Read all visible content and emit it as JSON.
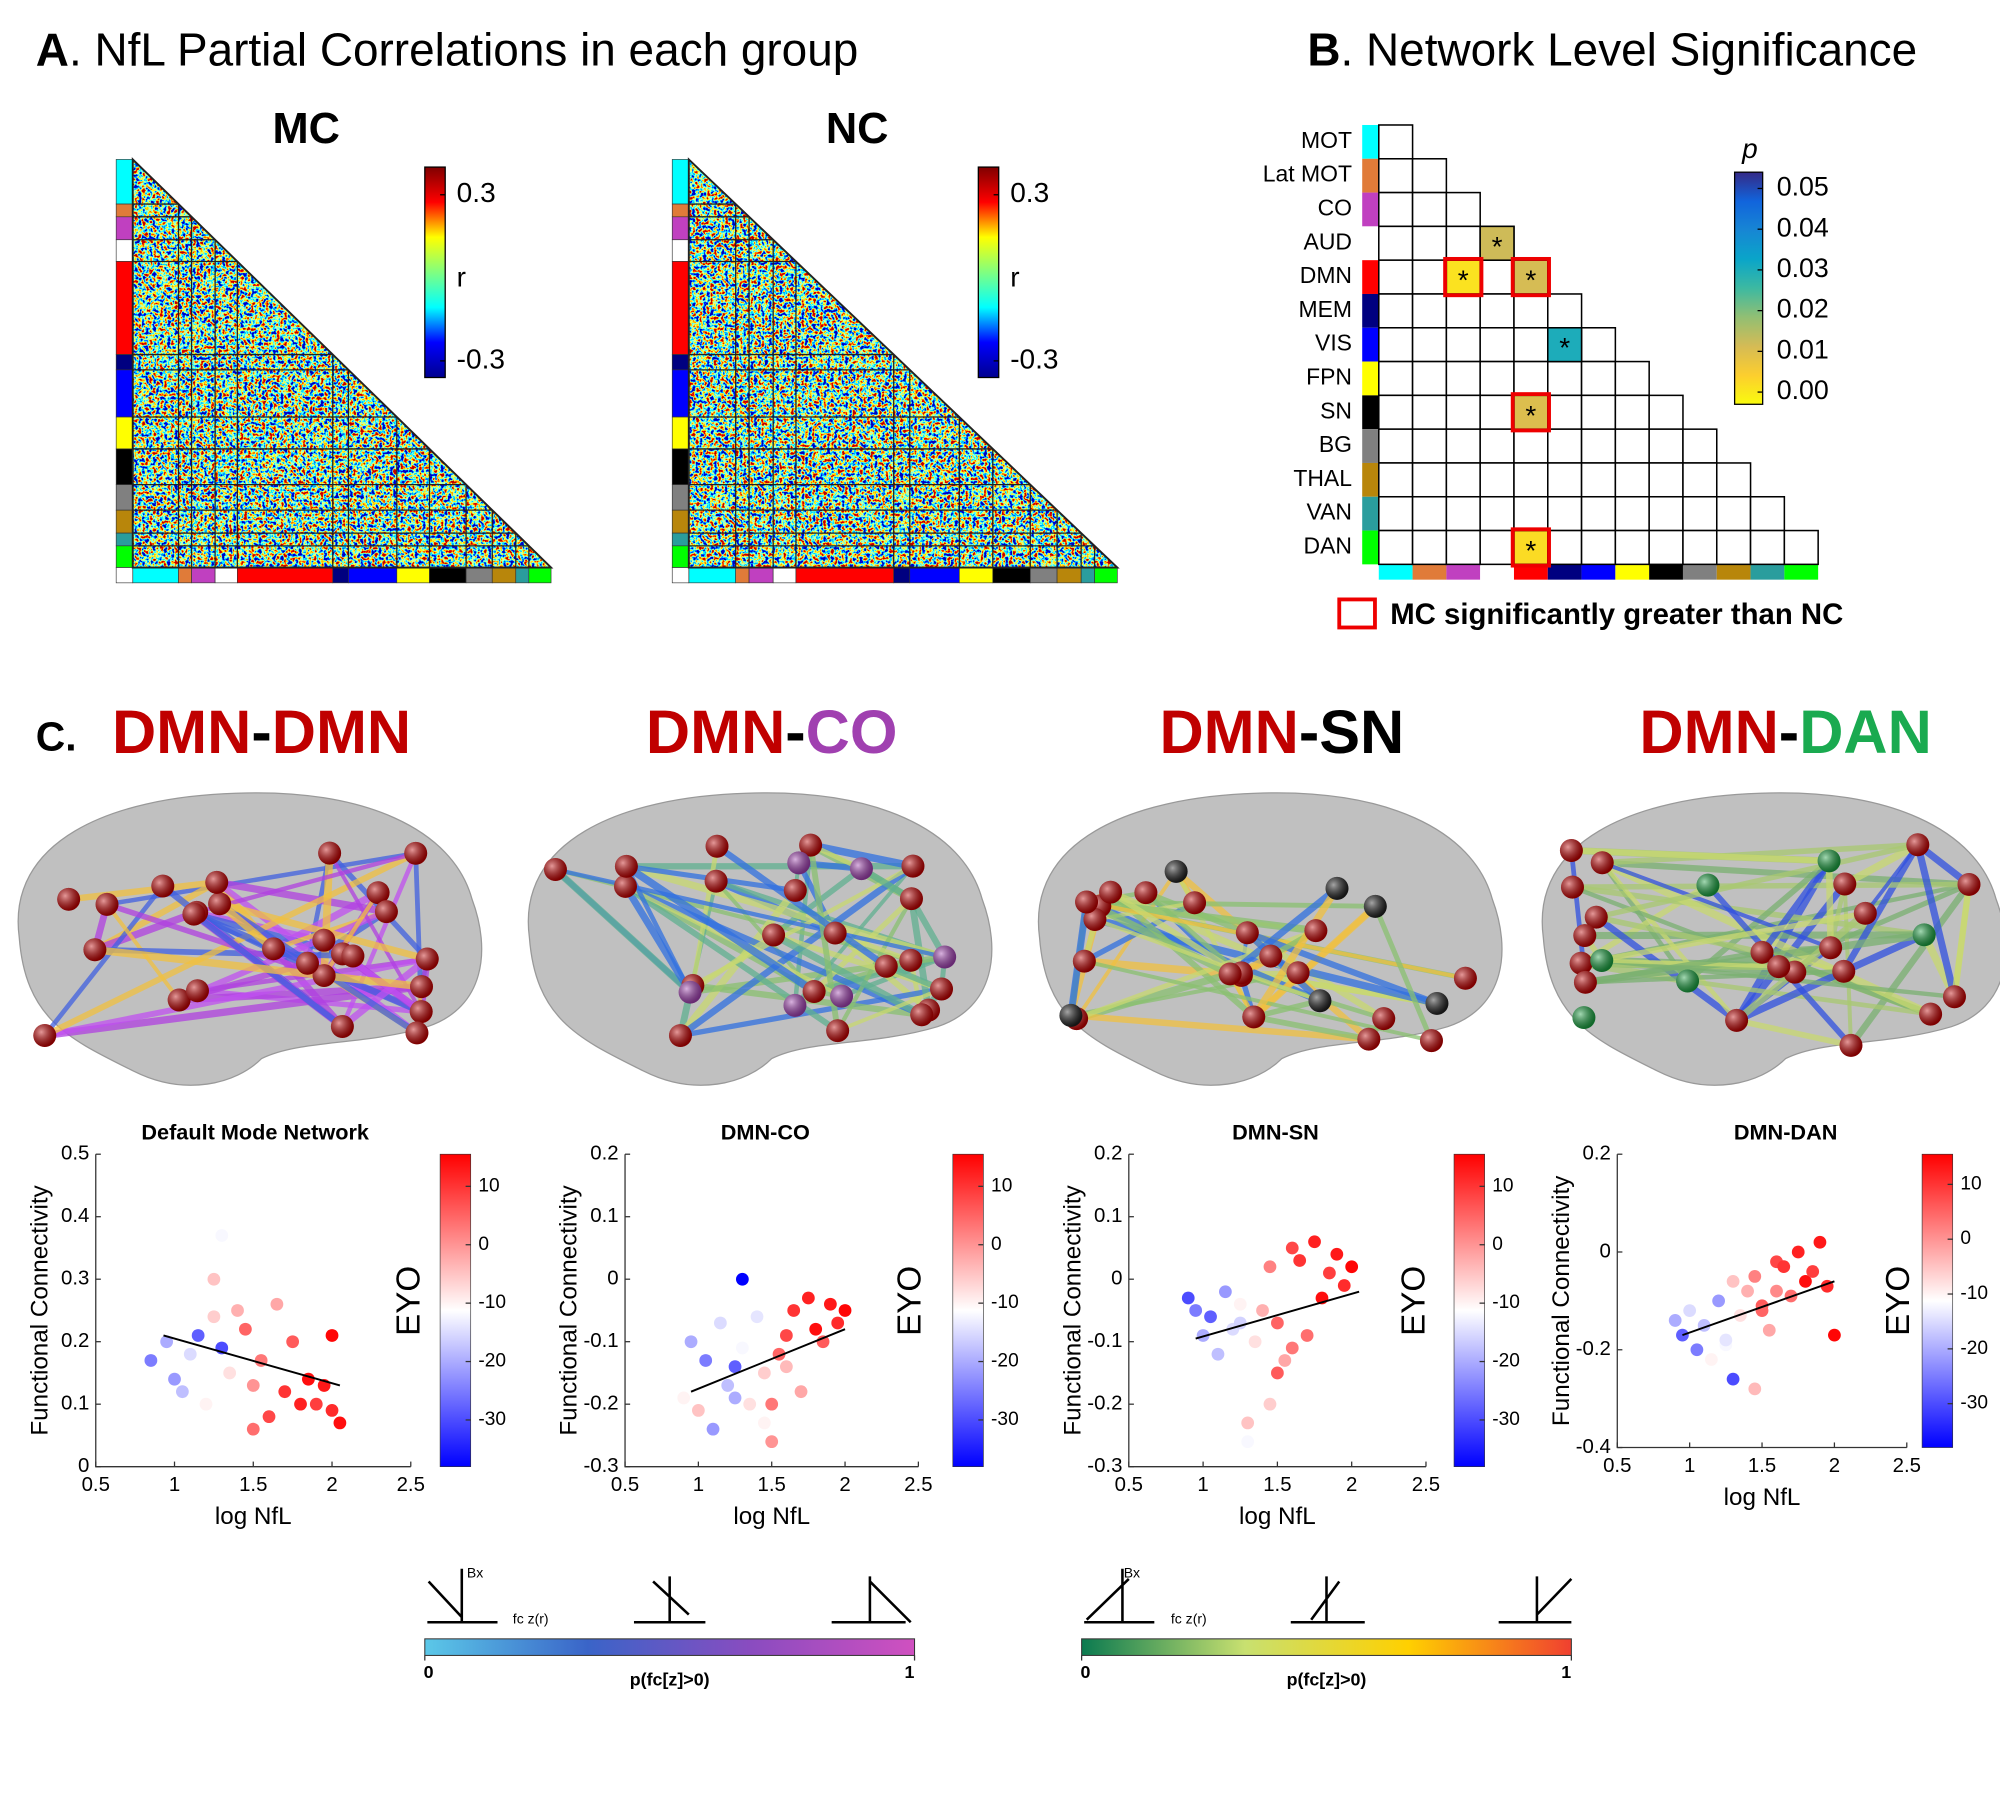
{
  "networks": [
    {
      "name": "MOT",
      "color": "#00ffff"
    },
    {
      "name": "Lat MOT",
      "color": "#e07b39"
    },
    {
      "name": "CO",
      "color": "#c040c0"
    },
    {
      "name": "AUD",
      "color": "#ffffff"
    },
    {
      "name": "DMN",
      "color": "#ff0000"
    },
    {
      "name": "MEM",
      "color": "#000080"
    },
    {
      "name": "VIS",
      "color": "#0000ff"
    },
    {
      "name": "FPN",
      "color": "#ffff00"
    },
    {
      "name": "SN",
      "color": "#000000"
    },
    {
      "name": "BG",
      "color": "#808080"
    },
    {
      "name": "THAL",
      "color": "#b8860b"
    },
    {
      "name": "VAN",
      "color": "#2a9d9d"
    },
    {
      "name": "DAN",
      "color": "#00ff00"
    }
  ],
  "panel_a": {
    "label": "A",
    "title": ". NfL Partial Correlations in each group",
    "matrices": [
      {
        "title": "MC"
      },
      {
        "title": "NC"
      }
    ],
    "colorbar": {
      "label": "r",
      "clim": [
        -0.36,
        0.4
      ],
      "ticks": [
        0.3,
        -0.3
      ],
      "colors": [
        "#00008f",
        "#0000ff",
        "#00ffff",
        "#80ff80",
        "#ffff00",
        "#ff0000",
        "#800000"
      ]
    }
  },
  "panel_b": {
    "label": "B",
    "title": ". Network Level Significance",
    "colorbar": {
      "label": "p",
      "clim": [
        -0.003,
        0.054
      ],
      "ticks": [
        {
          "value": 0.05,
          "label": "0.05"
        },
        {
          "value": 0.04,
          "label": "0.04"
        },
        {
          "value": 0.03,
          "label": "0.03"
        },
        {
          "value": 0.02,
          "label": "0.02"
        },
        {
          "value": 0.01,
          "label": "0.01"
        },
        {
          "value": 0,
          "label": "0.00"
        }
      ],
      "colors": [
        "#f9fb0e",
        "#fcce2e",
        "#d5bb55",
        "#92bf73",
        "#3db9a1",
        "#0aa5c9",
        "#1786d4",
        "#1164dc",
        "#352a87"
      ]
    },
    "cells": [
      {
        "row": "AUD",
        "col": "AUD",
        "p": 0.012,
        "mark": "*",
        "mc_greater": false
      },
      {
        "row": "DMN",
        "col": "CO",
        "p": 0.001,
        "mark": "*",
        "mc_greater": true
      },
      {
        "row": "DMN",
        "col": "DMN",
        "p": 0.011,
        "mark": "*",
        "mc_greater": true
      },
      {
        "row": "VIS",
        "col": "MEM",
        "p": 0.03,
        "mark": "*",
        "mc_greater": false
      },
      {
        "row": "SN",
        "col": "DMN",
        "p": 0.01,
        "mark": "*",
        "mc_greater": true
      },
      {
        "row": "DAN",
        "col": "DMN",
        "p": 0.002,
        "mark": "*",
        "mc_greater": true
      }
    ],
    "legend": "MC significantly greater than NC"
  },
  "panel_c": {
    "label": "C.",
    "plots": [
      {
        "title_parts": [
          {
            "text": "DMN",
            "color": "#c00000"
          },
          {
            "text": "-",
            "color": "#000000"
          },
          {
            "text": "DMN",
            "color": "#c00000"
          }
        ],
        "title": "Default Mode Network",
        "xlabel": "log NfL",
        "ylabel": "Functional Connectivity",
        "xlim": [
          0.5,
          2.5
        ],
        "xticks": [
          0.5,
          1,
          1.5,
          2,
          2.5
        ],
        "ylim": [
          0,
          0.5
        ],
        "yticks": [
          0,
          0.1,
          0.2,
          0.3,
          0.4,
          0.5
        ],
        "x": [
          0.85,
          0.95,
          1.0,
          1.05,
          1.1,
          1.15,
          1.2,
          1.25,
          1.3,
          1.3,
          1.35,
          1.4,
          1.45,
          1.5,
          1.55,
          1.6,
          1.65,
          1.7,
          1.75,
          1.8,
          1.85,
          1.9,
          1.95,
          2.0,
          2.0,
          2.05,
          1.5,
          1.25
        ],
        "y": [
          0.17,
          0.2,
          0.14,
          0.12,
          0.18,
          0.21,
          0.1,
          0.3,
          0.37,
          0.19,
          0.15,
          0.25,
          0.22,
          0.13,
          0.17,
          0.08,
          0.26,
          0.12,
          0.2,
          0.1,
          0.14,
          0.1,
          0.13,
          0.21,
          0.09,
          0.07,
          0.06,
          0.24
        ],
        "eyo": [
          -25,
          -20,
          -22,
          -18,
          -15,
          -28,
          -10,
          -5,
          -12,
          -30,
          -8,
          -3,
          5,
          0,
          3,
          8,
          -2,
          10,
          6,
          12,
          14,
          9,
          13,
          15,
          11,
          14,
          4,
          -6
        ],
        "fit": {
          "x": [
            0.93,
            2.05
          ],
          "y": [
            0.21,
            0.13
          ]
        },
        "colorbar": {
          "label": "EYO",
          "clim": [
            -38,
            15.5
          ],
          "ticks": [
            10,
            0,
            -10,
            -20,
            -30
          ],
          "colors": [
            "#0000ff",
            "#ffffff",
            "#ff0000"
          ]
        }
      },
      {
        "title_parts": [
          {
            "text": "DMN",
            "color": "#c00000"
          },
          {
            "text": "-",
            "color": "#000000"
          },
          {
            "text": "CO",
            "color": "#a040b0"
          }
        ],
        "title": "DMN-CO",
        "xlabel": "log NfL",
        "ylabel": "Functional Connectivity",
        "xlim": [
          0.5,
          2.5
        ],
        "xticks": [
          0.5,
          1,
          1.5,
          2,
          2.5
        ],
        "ylim": [
          -0.3,
          0.2
        ],
        "yticks": [
          -0.3,
          -0.2,
          -0.1,
          0,
          0.1,
          0.2
        ],
        "x": [
          0.9,
          0.95,
          1.0,
          1.05,
          1.1,
          1.15,
          1.2,
          1.25,
          1.3,
          1.3,
          1.35,
          1.4,
          1.45,
          1.5,
          1.55,
          1.6,
          1.65,
          1.7,
          1.75,
          1.8,
          1.85,
          1.9,
          1.95,
          2.0,
          1.5,
          1.6,
          1.45,
          1.25
        ],
        "y": [
          -0.19,
          -0.1,
          -0.21,
          -0.13,
          -0.24,
          -0.07,
          -0.17,
          -0.14,
          -0.11,
          0.0,
          -0.2,
          -0.06,
          -0.15,
          -0.26,
          -0.12,
          -0.09,
          -0.05,
          -0.18,
          -0.03,
          -0.08,
          -0.1,
          -0.04,
          -0.07,
          -0.05,
          -0.2,
          -0.14,
          -0.23,
          -0.19
        ],
        "eyo": [
          -10,
          -20,
          -5,
          -25,
          -22,
          -15,
          -18,
          -28,
          -12,
          -38,
          -8,
          -14,
          -6,
          0,
          5,
          8,
          10,
          -2,
          12,
          14,
          6,
          13,
          11,
          15,
          3,
          -4,
          -10,
          -20
        ],
        "fit": {
          "x": [
            0.95,
            2.0
          ],
          "y": [
            -0.18,
            -0.08
          ]
        },
        "colorbar": {
          "label": "EYO",
          "clim": [
            -38,
            15.5
          ],
          "ticks": [
            10,
            0,
            -10,
            -20,
            -30
          ],
          "colors": [
            "#0000ff",
            "#ffffff",
            "#ff0000"
          ]
        }
      },
      {
        "title_parts": [
          {
            "text": "DMN",
            "color": "#c00000"
          },
          {
            "text": "-SN",
            "color": "#000000"
          }
        ],
        "title": "DMN-SN",
        "xlabel": "log NfL",
        "ylabel": "Functional Connectivity",
        "xlim": [
          0.5,
          2.5
        ],
        "xticks": [
          0.5,
          1,
          1.5,
          2,
          2.5
        ],
        "ylim": [
          -0.3,
          0.2
        ],
        "yticks": [
          -0.3,
          -0.2,
          -0.1,
          0,
          0.1,
          0.2
        ],
        "x": [
          0.9,
          0.95,
          1.0,
          1.05,
          1.1,
          1.15,
          1.2,
          1.25,
          1.3,
          1.3,
          1.35,
          1.4,
          1.45,
          1.5,
          1.55,
          1.6,
          1.65,
          1.7,
          1.75,
          1.8,
          1.85,
          1.9,
          1.95,
          2.0,
          1.5,
          1.6,
          1.45,
          1.25
        ],
        "y": [
          -0.03,
          -0.05,
          -0.09,
          -0.06,
          -0.12,
          -0.02,
          -0.08,
          -0.04,
          -0.23,
          -0.26,
          -0.1,
          -0.05,
          0.02,
          -0.07,
          -0.13,
          0.05,
          0.03,
          -0.09,
          0.06,
          -0.03,
          0.01,
          0.04,
          -0.01,
          0.02,
          -0.15,
          -0.11,
          -0.2,
          -0.07
        ],
        "eyo": [
          -30,
          -25,
          -20,
          -28,
          -18,
          -22,
          -15,
          -10,
          -5,
          -12,
          -8,
          -3,
          2,
          5,
          -2,
          8,
          10,
          4,
          12,
          14,
          9,
          13,
          11,
          15,
          6,
          3,
          -6,
          -16
        ],
        "fit": {
          "x": [
            0.95,
            2.05
          ],
          "y": [
            -0.095,
            -0.02
          ]
        },
        "colorbar": {
          "label": "EYO",
          "clim": [
            -38,
            15.5
          ],
          "ticks": [
            10,
            0,
            -10,
            -20,
            -30
          ],
          "colors": [
            "#0000ff",
            "#ffffff",
            "#ff0000"
          ]
        }
      },
      {
        "title_parts": [
          {
            "text": "DMN",
            "color": "#c00000"
          },
          {
            "text": "-",
            "color": "#000000"
          },
          {
            "text": "DAN",
            "color": "#1aaa50"
          }
        ],
        "title": "DMN-DAN",
        "xlabel": "log NfL",
        "ylabel": "Functional Connectivity",
        "xlim": [
          0.5,
          2.5
        ],
        "xticks": [
          0.5,
          1,
          1.5,
          2,
          2.5
        ],
        "ylim": [
          -0.4,
          0.2
        ],
        "yticks": [
          -0.4,
          -0.2,
          0,
          0.2
        ],
        "x": [
          0.9,
          0.95,
          1.0,
          1.05,
          1.1,
          1.15,
          1.2,
          1.25,
          1.3,
          1.3,
          1.35,
          1.4,
          1.45,
          1.5,
          1.55,
          1.6,
          1.65,
          1.7,
          1.75,
          1.8,
          1.85,
          1.9,
          1.95,
          2.0,
          1.5,
          1.6,
          1.45,
          1.25
        ],
        "y": [
          -0.14,
          -0.17,
          -0.12,
          -0.2,
          -0.15,
          -0.22,
          -0.1,
          -0.19,
          -0.06,
          -0.26,
          -0.13,
          -0.08,
          -0.05,
          -0.11,
          -0.16,
          -0.02,
          -0.03,
          -0.09,
          0.0,
          -0.06,
          -0.04,
          0.02,
          -0.07,
          -0.17,
          -0.12,
          -0.08,
          -0.28,
          -0.18
        ],
        "eyo": [
          -20,
          -28,
          -15,
          -25,
          -18,
          -10,
          -22,
          -12,
          -5,
          -30,
          -8,
          -3,
          2,
          6,
          -2,
          8,
          10,
          4,
          12,
          14,
          9,
          13,
          11,
          15,
          5,
          1,
          -4,
          -14
        ],
        "fit": {
          "x": [
            0.95,
            2.0
          ],
          "y": [
            -0.17,
            -0.06
          ]
        },
        "colorbar": {
          "label": "EYO",
          "clim": [
            -38,
            15.5
          ],
          "ticks": [
            10,
            0,
            -10,
            -20,
            -30
          ],
          "colors": [
            "#0000ff",
            "#ffffff",
            "#ff0000"
          ]
        }
      }
    ],
    "legends": [
      {
        "title": "p(fc[z]>0)",
        "lim": [
          0,
          1
        ],
        "ticks": [
          0,
          1
        ],
        "beta": "Bx",
        "fc": "fc z(r)",
        "colors": [
          "#5bc8e8",
          "#3a64c8",
          "#8a4cc0",
          "#d050c0"
        ]
      },
      {
        "title": "p(fc[z]>0)",
        "lim": [
          0,
          1
        ],
        "ticks": [
          0,
          1
        ],
        "beta": "Bx",
        "fc": "fc z(r)",
        "colors": [
          "#0b7a50",
          "#c8e070",
          "#ffd000",
          "#f04030"
        ]
      }
    ]
  }
}
